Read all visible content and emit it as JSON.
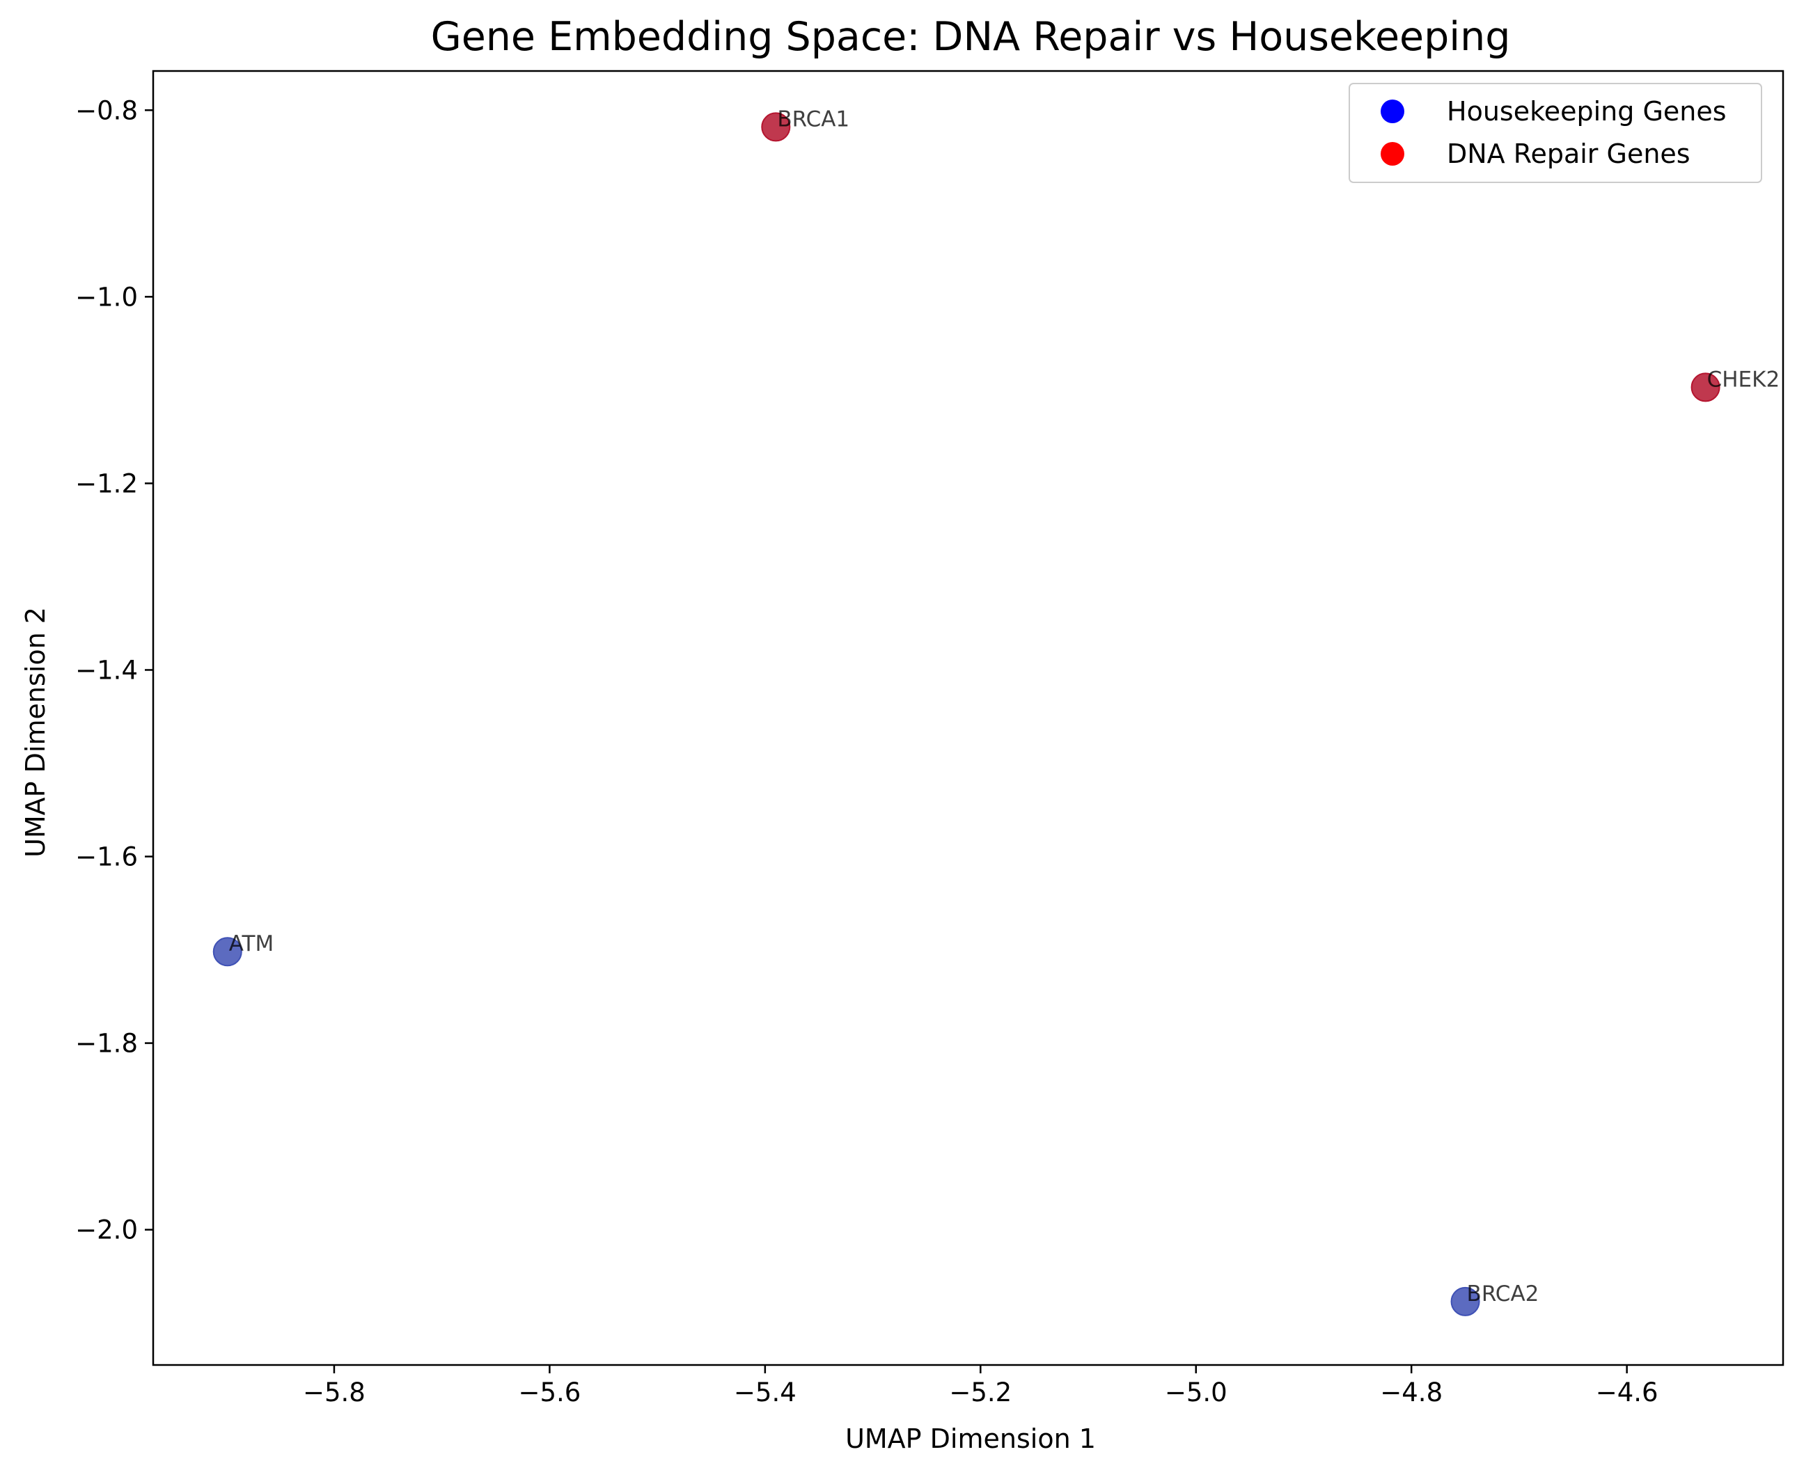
{
  "chart_data": {
    "type": "scatter",
    "title": "Gene Embedding Space: DNA Repair vs Housekeeping",
    "xlabel": "UMAP Dimension 1",
    "ylabel": "UMAP Dimension 2",
    "xlim": [
      -5.968,
      -4.455
    ],
    "ylim": [
      -2.145,
      -0.758
    ],
    "xticks": [
      -5.8,
      -5.6,
      -5.4,
      -5.2,
      -5.0,
      -4.8,
      -4.6
    ],
    "yticks": [
      -0.8,
      -1.0,
      -1.2,
      -1.4,
      -1.6,
      -1.8,
      -2.0
    ],
    "xtick_labels": [
      "−5.8",
      "−5.6",
      "−5.4",
      "−5.2",
      "−5.0",
      "−4.8",
      "−4.6"
    ],
    "ytick_labels": [
      "−0.8",
      "−1.0",
      "−1.2",
      "−1.4",
      "−1.6",
      "−1.8",
      "−2.0"
    ],
    "grid": false,
    "legend_position": "top-right",
    "series": [
      {
        "name": "Housekeeping Genes",
        "legend_color": "#0000ff",
        "point_color": "#3f51b5",
        "points": [
          {
            "label": "ATM",
            "x": -5.899,
            "y": -1.702
          },
          {
            "label": "BRCA2",
            "x": -4.75,
            "y": -2.077
          }
        ]
      },
      {
        "name": "DNA Repair Genes",
        "legend_color": "#ff0000",
        "point_color": "#b5152f",
        "points": [
          {
            "label": "BRCA1",
            "x": -5.39,
            "y": -0.818
          },
          {
            "label": "CHEK2",
            "x": -4.527,
            "y": -1.097
          }
        ]
      }
    ]
  }
}
